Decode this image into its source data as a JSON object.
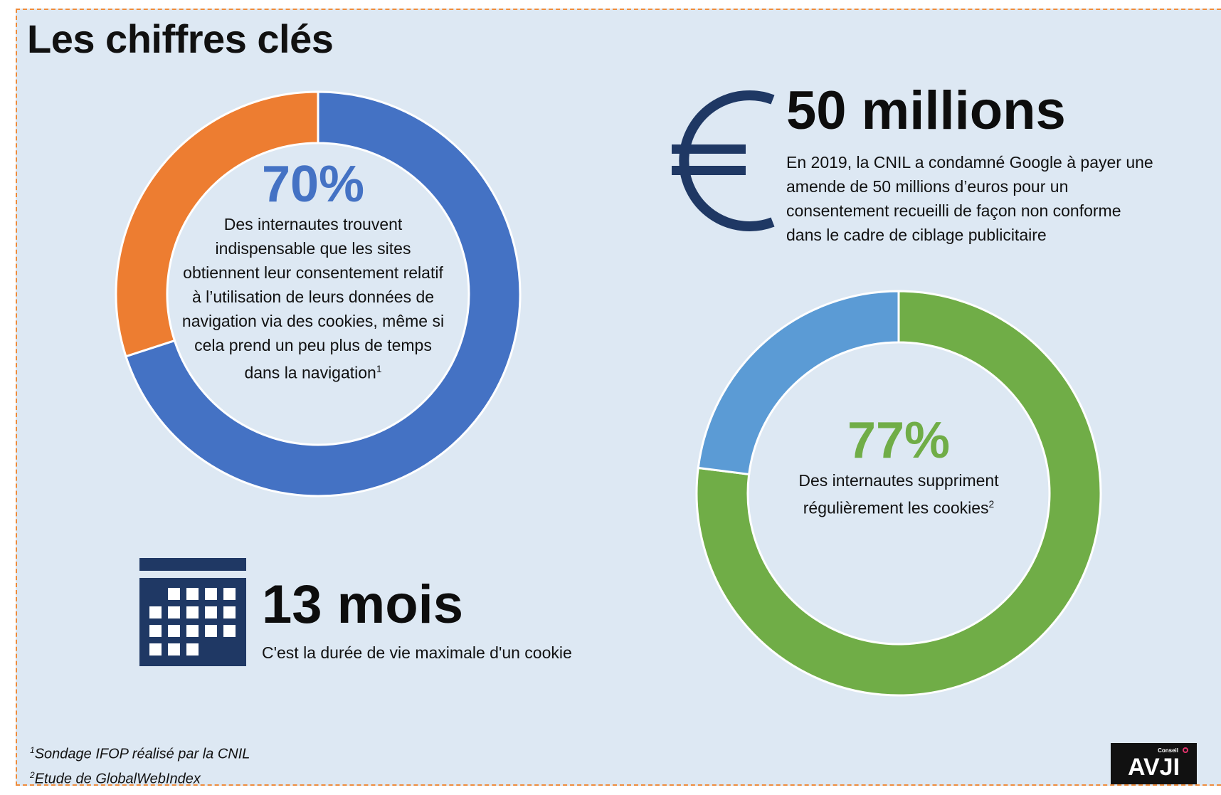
{
  "title": "Les chiffres clés",
  "chart_data": [
    {
      "type": "pie",
      "categories": [
        "",
        ""
      ],
      "values": [
        70,
        30
      ],
      "colors": [
        "#4472c4",
        "#ed7d31"
      ],
      "center_value": "70%",
      "center_text": "Des internautes trouvent indispensable que les sites obtiennent leur consentement relatif à l’utilisation de leurs données de navigation via des cookies, même si cela prend un peu plus de temps dans la navigation",
      "footnote_ref": "1"
    },
    {
      "type": "pie",
      "categories": [
        "",
        ""
      ],
      "values": [
        77,
        23
      ],
      "colors": [
        "#70ad47",
        "#5b9bd5"
      ],
      "center_value": "77%",
      "center_text": "Des internautes suppriment régulièrement les cookies",
      "footnote_ref": "2"
    }
  ],
  "fine": {
    "icon": "euro-icon",
    "figure": "50 millions",
    "lines": [
      "En 2019, la CNIL a condamné Google à payer une",
      "amende de 50 millions d’euros pour un",
      "consentement recueilli de façon non conforme",
      "dans le cadre de ciblage publicitaire"
    ]
  },
  "cookie_life": {
    "icon": "calendar-icon",
    "figure": "13 mois",
    "text": "C'est la durée de vie maximale d'un cookie"
  },
  "footnotes": [
    {
      "ref": "1",
      "text": "Sondage IFOP réalisé par la CNIL"
    },
    {
      "ref": "2",
      "text": "Etude de GlobalWebIndex"
    }
  ],
  "logo": {
    "main": "AVJI",
    "sub": "Conseil"
  },
  "colors": {
    "background": "#dde8f3",
    "border": "#ee8c3c",
    "navy": "#1f3864",
    "blue": "#4472c4",
    "orange": "#ed7d31",
    "green": "#70ad47",
    "lightblue": "#5b9bd5"
  }
}
